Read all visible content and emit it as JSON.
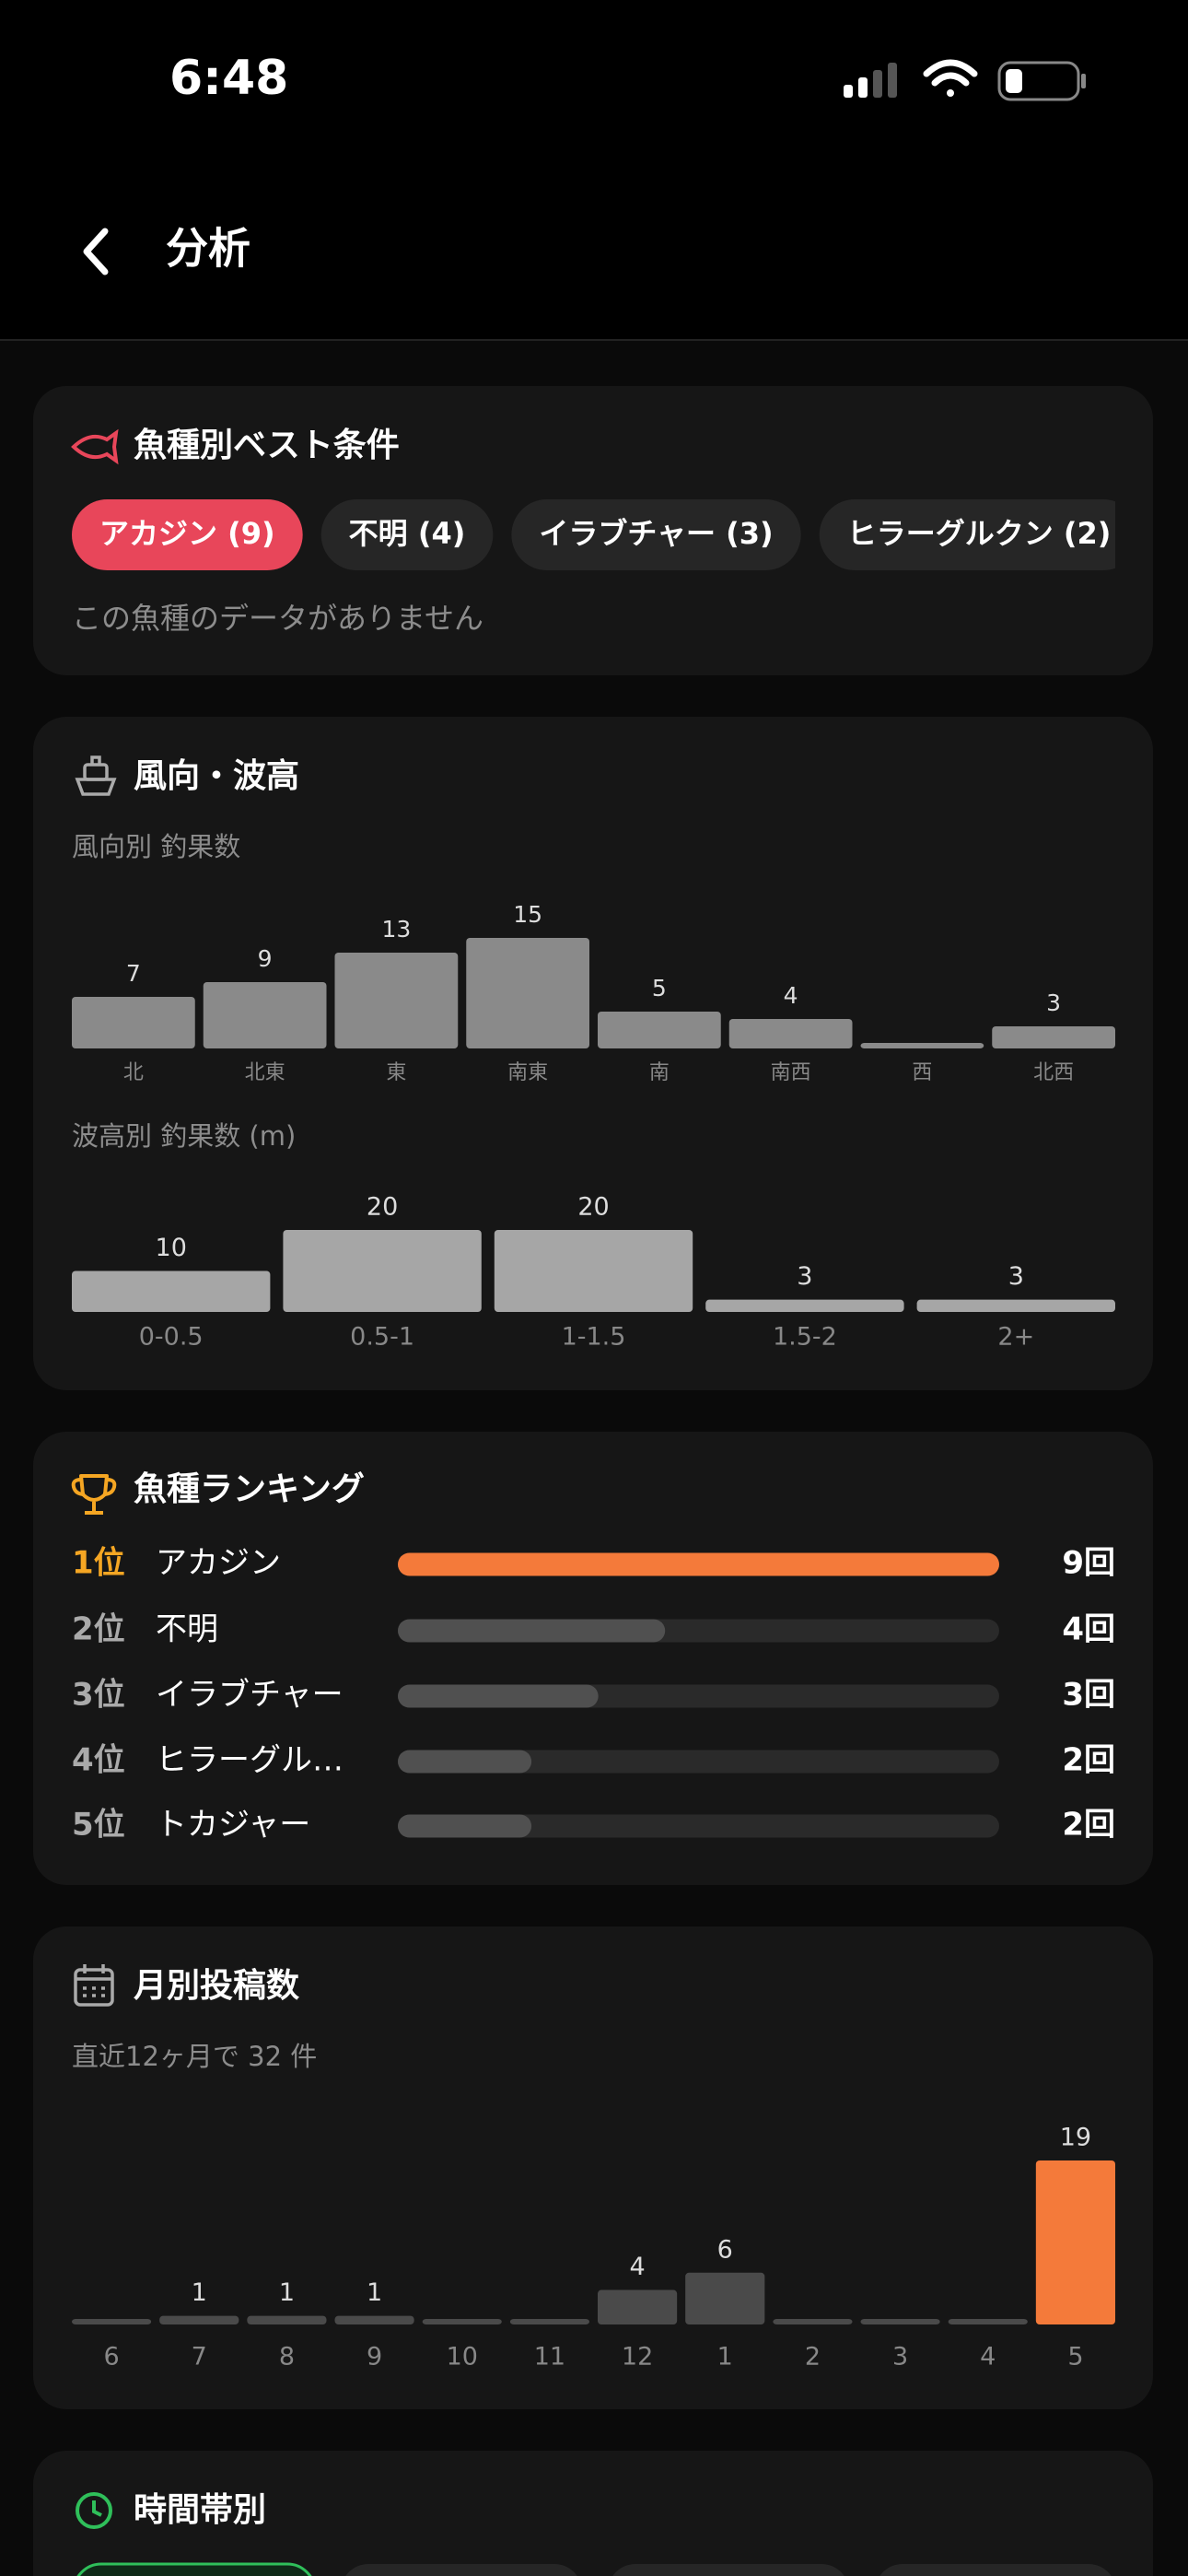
{
  "status_bar": {
    "time": "6:48"
  },
  "header": {
    "title": "分析"
  },
  "species_best": {
    "title": "魚種別ベスト条件",
    "chips": [
      "アカジン (9)",
      "不明 (4)",
      "イラブチャー (3)",
      "ヒラーグルクン (2)"
    ],
    "empty_message": "この魚種のデータがありません"
  },
  "wind_wave": {
    "title": "風向・波高",
    "wind": {
      "type": "bar",
      "label": "風向別 釣果数",
      "color": "#8a8a8a",
      "categories": [
        "北",
        "北東",
        "東",
        "南東",
        "南",
        "南西",
        "西",
        "北西"
      ],
      "values": [
        7,
        9,
        13,
        15,
        5,
        4,
        0,
        3
      ]
    },
    "wave": {
      "type": "bar",
      "label": "波高別 釣果数 (m)",
      "color": "#a6a6a6",
      "categories": [
        "0-0.5",
        "0.5-1",
        "1-1.5",
        "1.5-2",
        "2+"
      ],
      "values": [
        10,
        20,
        20,
        3,
        3
      ]
    }
  },
  "ranking": {
    "title": "魚種ランキング",
    "ranks": [
      "1位",
      "2位",
      "3位",
      "4位",
      "5位"
    ],
    "names": [
      "アカジン",
      "不明",
      "イラブチャー",
      "ヒラーグル…",
      "トカジャー"
    ],
    "values": [
      9,
      4,
      3,
      2,
      2
    ],
    "value_labels": [
      "9回",
      "4回",
      "3回",
      "2回",
      "2回"
    ],
    "colors": [
      "#f47a3a",
      "#505050",
      "#505050",
      "#505050",
      "#505050"
    ]
  },
  "monthly": {
    "type": "bar",
    "title": "月別投稿数",
    "subtitle": "直近12ヶ月で 32 件",
    "categories": [
      "6",
      "7",
      "8",
      "9",
      "10",
      "11",
      "12",
      "1",
      "2",
      "3",
      "4",
      "5"
    ],
    "values": [
      0,
      1,
      1,
      1,
      0,
      0,
      4,
      6,
      0,
      0,
      0,
      19
    ],
    "colors": [
      "#4a4a4a",
      "#4a4a4a",
      "#4a4a4a",
      "#4a4a4a",
      "#4a4a4a",
      "#4a4a4a",
      "#4a4a4a",
      "#4a4a4a",
      "#4a4a4a",
      "#4a4a4a",
      "#4a4a4a",
      "#f47a3a"
    ]
  },
  "time_of_day": {
    "title": "時間帯別"
  }
}
